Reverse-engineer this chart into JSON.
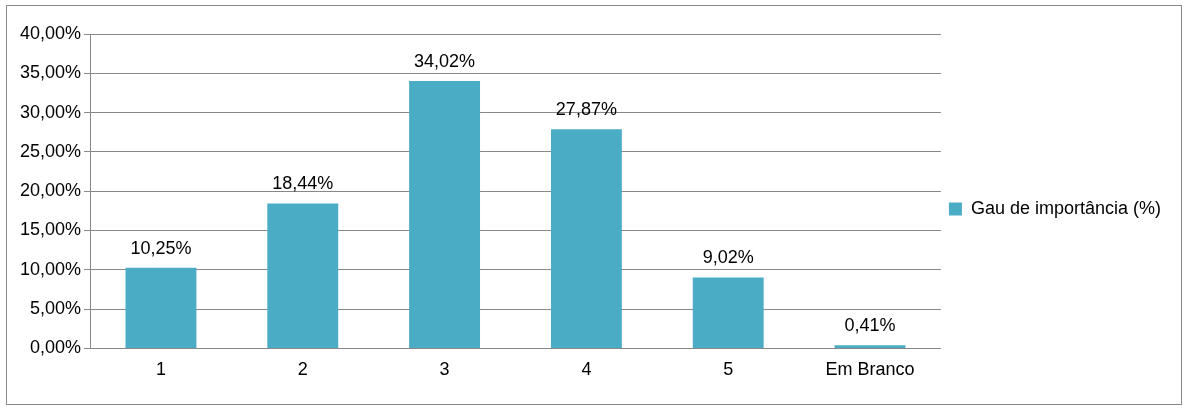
{
  "chart_data": {
    "type": "bar",
    "categories": [
      "1",
      "2",
      "3",
      "4",
      "5",
      "Em Branco"
    ],
    "series": [
      {
        "name": "Gau de importância (%)",
        "color": "#4bacc6",
        "values": [
          10.25,
          18.44,
          34.02,
          27.87,
          9.02,
          0.41
        ],
        "value_labels": [
          "10,25%",
          "18,44%",
          "34,02%",
          "27,87%",
          "9,02%",
          "0,41%"
        ]
      }
    ],
    "ylim": [
      0,
      40
    ],
    "yticks": [
      {
        "value": 0,
        "label": "0,00%"
      },
      {
        "value": 5,
        "label": "5,00%"
      },
      {
        "value": 10,
        "label": "10,00%"
      },
      {
        "value": 15,
        "label": "15,00%"
      },
      {
        "value": 20,
        "label": "20,00%"
      },
      {
        "value": 25,
        "label": "25,00%"
      },
      {
        "value": 30,
        "label": "30,00%"
      },
      {
        "value": 35,
        "label": "35,00%"
      },
      {
        "value": 40,
        "label": "40,00%"
      }
    ],
    "grid": "y",
    "legend": "right"
  }
}
